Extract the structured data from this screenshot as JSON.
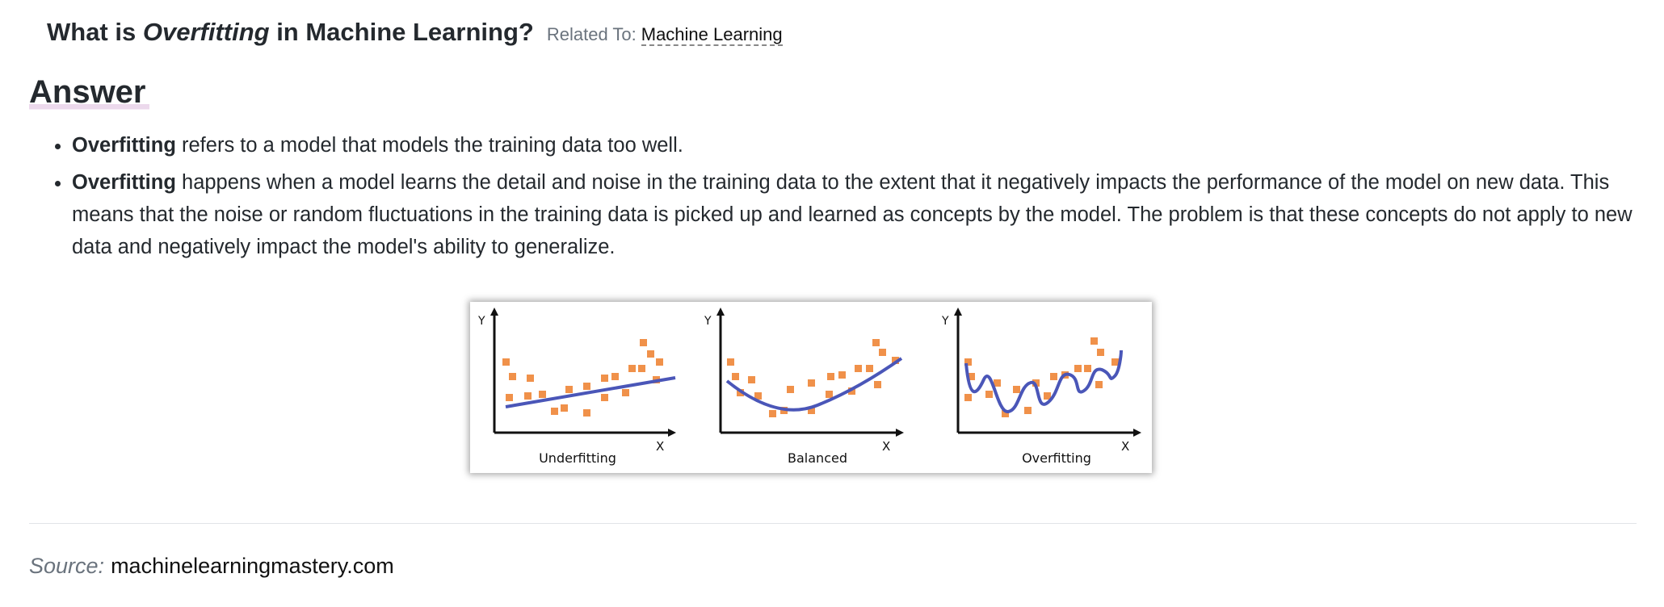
{
  "question": {
    "prefix": "What is ",
    "term": "Overfitting",
    "suffix": " in Machine Learning?",
    "related_label": "Related To:",
    "related_link": "Machine Learning"
  },
  "answer": {
    "heading": "Answer",
    "points": [
      {
        "bold": "Overfitting",
        "text": " refers to a model that models the training data too well."
      },
      {
        "bold": "Overfitting",
        "text": " happens when a model learns the detail and noise in the training data to the extent that it negatively impacts the performance of the model on new data. This means that the noise or random fluctuations in the training data is picked up and learned as concepts by the model. The problem is that these concepts do not apply to new data and negatively impact the model's ability to generalize."
      }
    ]
  },
  "figure": {
    "panels": [
      {
        "label": "Underfitting",
        "y_axis": "Y",
        "x_axis": "X"
      },
      {
        "label": "Balanced",
        "y_axis": "Y",
        "x_axis": "X"
      },
      {
        "label": "Overfitting",
        "y_axis": "Y",
        "x_axis": "X"
      }
    ],
    "colors": {
      "points": "#f0914a",
      "curve": "#4a56b8",
      "axes": "#111111"
    }
  },
  "source": {
    "label": "Source:",
    "link": "machinelearningmastery.com"
  }
}
